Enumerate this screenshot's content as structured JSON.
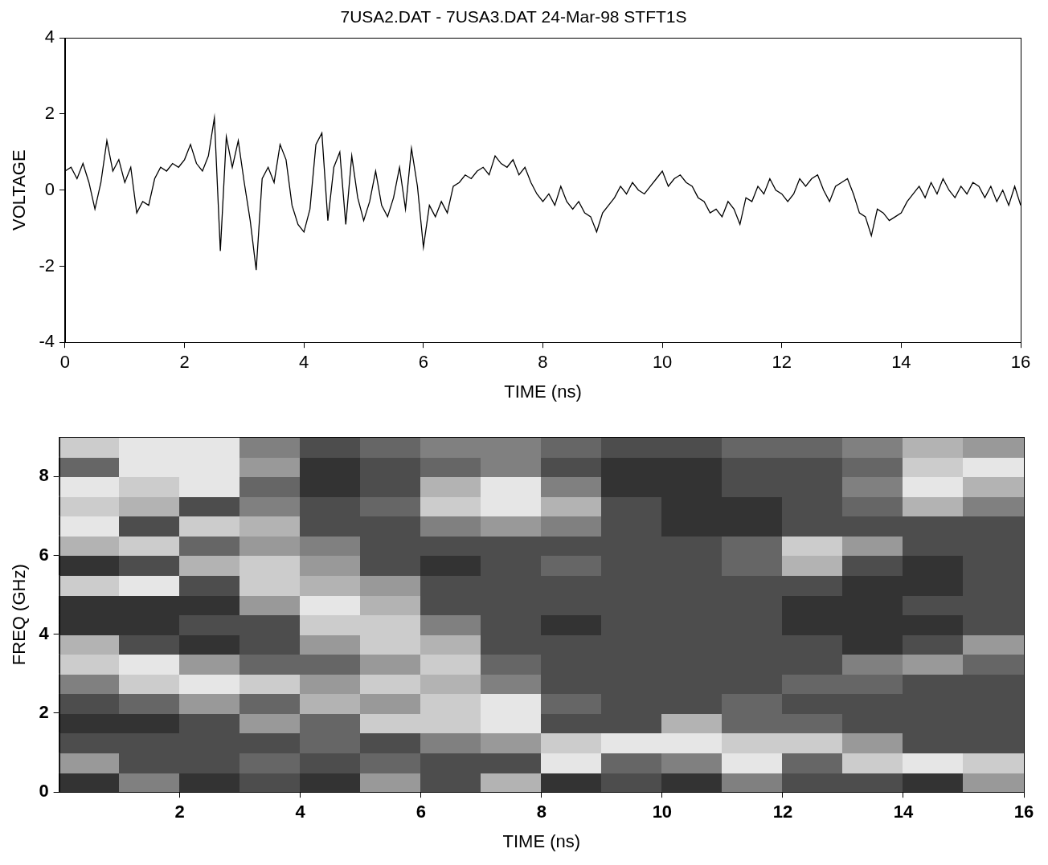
{
  "chart_data": [
    {
      "type": "line",
      "title": "7USA2.DAT - 7USA3.DAT 24-Mar-98 STFT1S",
      "xlabel": "TIME (ns)",
      "ylabel": "VOLTAGE",
      "color": "#000000",
      "grid": false,
      "xlim": [
        0,
        16
      ],
      "ylim": [
        -4,
        4
      ],
      "xticks": [
        0,
        2,
        4,
        6,
        8,
        10,
        12,
        14,
        16
      ],
      "yticks": [
        -4,
        -2,
        0,
        2,
        4
      ],
      "x": [
        0,
        0.1,
        0.2,
        0.3,
        0.4,
        0.5,
        0.6,
        0.7,
        0.8,
        0.9,
        1,
        1.1,
        1.2,
        1.3,
        1.4,
        1.5,
        1.6,
        1.7,
        1.8,
        1.9,
        2,
        2.1,
        2.2,
        2.3,
        2.4,
        2.5,
        2.6,
        2.7,
        2.8,
        2.9,
        3,
        3.1,
        3.2,
        3.3,
        3.4,
        3.5,
        3.6,
        3.7,
        3.8,
        3.9,
        4,
        4.1,
        4.2,
        4.3,
        4.4,
        4.5,
        4.6,
        4.7,
        4.8,
        4.9,
        5,
        5.1,
        5.2,
        5.3,
        5.4,
        5.5,
        5.6,
        5.7,
        5.8,
        5.9,
        6,
        6.1,
        6.2,
        6.3,
        6.4,
        6.5,
        6.6,
        6.7,
        6.8,
        6.9,
        7,
        7.1,
        7.2,
        7.3,
        7.4,
        7.5,
        7.6,
        7.7,
        7.8,
        7.9,
        8,
        8.1,
        8.2,
        8.3,
        8.4,
        8.5,
        8.6,
        8.7,
        8.8,
        8.9,
        9,
        9.1,
        9.2,
        9.3,
        9.4,
        9.5,
        9.6,
        9.7,
        9.8,
        9.9,
        10,
        10.1,
        10.2,
        10.3,
        10.4,
        10.5,
        10.6,
        10.7,
        10.8,
        10.9,
        11,
        11.1,
        11.2,
        11.3,
        11.4,
        11.5,
        11.6,
        11.7,
        11.8,
        11.9,
        12,
        12.1,
        12.2,
        12.3,
        12.4,
        12.5,
        12.6,
        12.7,
        12.8,
        12.9,
        13,
        13.1,
        13.2,
        13.3,
        13.4,
        13.5,
        13.6,
        13.7,
        13.8,
        13.9,
        14,
        14.1,
        14.2,
        14.3,
        14.4,
        14.5,
        14.6,
        14.7,
        14.8,
        14.9,
        15,
        15.1,
        15.2,
        15.3,
        15.4,
        15.5,
        15.6,
        15.7,
        15.8,
        15.9,
        16
      ],
      "values": [
        0.5,
        0.6,
        0.3,
        0.7,
        0.2,
        -0.5,
        0.2,
        1.3,
        0.5,
        0.8,
        0.2,
        0.6,
        -0.6,
        -0.3,
        -0.4,
        0.3,
        0.6,
        0.5,
        0.7,
        0.6,
        0.8,
        1.2,
        0.7,
        0.5,
        0.9,
        1.9,
        -1.6,
        1.4,
        0.6,
        1.3,
        0.2,
        -0.8,
        -2.1,
        0.3,
        0.6,
        0.2,
        1.2,
        0.8,
        -0.4,
        -0.9,
        -1.1,
        -0.5,
        1.2,
        1.5,
        -0.8,
        0.6,
        1.0,
        -0.9,
        0.9,
        -0.2,
        -0.8,
        -0.3,
        0.5,
        -0.4,
        -0.7,
        -0.2,
        0.6,
        -0.5,
        1.1,
        0.1,
        -1.5,
        -0.4,
        -0.7,
        -0.3,
        -0.6,
        0.1,
        0.2,
        0.4,
        0.3,
        0.5,
        0.6,
        0.4,
        0.9,
        0.7,
        0.6,
        0.8,
        0.4,
        0.6,
        0.2,
        -0.1,
        -0.3,
        -0.1,
        -0.4,
        0.1,
        -0.3,
        -0.5,
        -0.3,
        -0.6,
        -0.7,
        -1.1,
        -0.6,
        -0.4,
        -0.2,
        0.1,
        -0.1,
        0.2,
        0,
        -0.1,
        0.1,
        0.3,
        0.5,
        0.1,
        0.3,
        0.4,
        0.2,
        0.1,
        -0.2,
        -0.3,
        -0.6,
        -0.5,
        -0.7,
        -0.3,
        -0.5,
        -0.9,
        -0.2,
        -0.3,
        0.1,
        -0.1,
        0.3,
        0,
        -0.1,
        -0.3,
        -0.1,
        0.3,
        0.1,
        0.3,
        0.4,
        0,
        -0.3,
        0.1,
        0.2,
        0.3,
        -0.1,
        -0.6,
        -0.7,
        -1.2,
        -0.5,
        -0.6,
        -0.8,
        -0.7,
        -0.6,
        -0.3,
        -0.1,
        0.1,
        -0.2,
        0.2,
        -0.1,
        0.3,
        0,
        -0.2,
        0.1,
        -0.1,
        0.2,
        0.1,
        -0.2,
        0.1,
        -0.3,
        0,
        -0.4,
        0.1,
        -0.4
      ]
    },
    {
      "type": "heatmap",
      "xlabel": "TIME (ns)",
      "ylabel": "FREQ (GHz)",
      "grid": false,
      "xlim": [
        0,
        16
      ],
      "ylim": [
        0,
        9
      ],
      "xticks": [
        2,
        4,
        6,
        8,
        10,
        12,
        14,
        16
      ],
      "yticks": [
        0,
        2,
        4,
        6,
        8
      ],
      "x_bins": [
        0,
        1,
        2,
        3,
        4,
        5,
        6,
        7,
        8,
        9,
        10,
        11,
        12,
        13,
        14,
        15,
        16
      ],
      "y_bins": [
        0,
        0.5,
        1,
        1.5,
        2,
        2.5,
        3,
        3.5,
        4,
        4.5,
        5,
        5.5,
        6,
        6.5,
        7,
        7.5,
        8,
        8.5,
        9
      ],
      "cells": [
        [
          0.2,
          0.5,
          0.2,
          0.3,
          0.2,
          0.6,
          0.3,
          0.7,
          0.2,
          0.3,
          0.2,
          0.5,
          0.3,
          0.3,
          0.2,
          0.6
        ],
        [
          0.6,
          0.3,
          0.3,
          0.4,
          0.3,
          0.4,
          0.3,
          0.3,
          0.9,
          0.4,
          0.5,
          0.9,
          0.4,
          0.8,
          0.9,
          0.8
        ],
        [
          0.3,
          0.3,
          0.3,
          0.3,
          0.4,
          0.3,
          0.5,
          0.6,
          0.8,
          0.9,
          0.9,
          0.8,
          0.8,
          0.6,
          0.3,
          0.3
        ],
        [
          0.2,
          0.2,
          0.3,
          0.6,
          0.4,
          0.8,
          0.8,
          0.9,
          0.3,
          0.3,
          0.7,
          0.4,
          0.4,
          0.3,
          0.3,
          0.3
        ],
        [
          0.3,
          0.4,
          0.6,
          0.4,
          0.7,
          0.6,
          0.8,
          0.9,
          0.4,
          0.3,
          0.3,
          0.4,
          0.3,
          0.3,
          0.3,
          0.3
        ],
        [
          0.5,
          0.8,
          0.9,
          0.8,
          0.6,
          0.8,
          0.7,
          0.5,
          0.3,
          0.3,
          0.3,
          0.3,
          0.4,
          0.4,
          0.3,
          0.3
        ],
        [
          0.8,
          0.9,
          0.6,
          0.4,
          0.4,
          0.6,
          0.8,
          0.4,
          0.3,
          0.3,
          0.3,
          0.3,
          0.3,
          0.5,
          0.6,
          0.4
        ],
        [
          0.7,
          0.3,
          0.2,
          0.3,
          0.6,
          0.8,
          0.7,
          0.3,
          0.3,
          0.3,
          0.3,
          0.3,
          0.3,
          0.2,
          0.3,
          0.6
        ],
        [
          0.2,
          0.2,
          0.3,
          0.3,
          0.8,
          0.8,
          0.5,
          0.3,
          0.2,
          0.3,
          0.3,
          0.3,
          0.2,
          0.2,
          0.2,
          0.3
        ],
        [
          0.2,
          0.2,
          0.2,
          0.6,
          0.9,
          0.7,
          0.3,
          0.3,
          0.3,
          0.3,
          0.3,
          0.3,
          0.2,
          0.2,
          0.3,
          0.3
        ],
        [
          0.8,
          0.9,
          0.3,
          0.8,
          0.7,
          0.6,
          0.3,
          0.3,
          0.3,
          0.3,
          0.3,
          0.3,
          0.3,
          0.2,
          0.2,
          0.3
        ],
        [
          0.2,
          0.3,
          0.7,
          0.8,
          0.6,
          0.3,
          0.2,
          0.3,
          0.4,
          0.3,
          0.3,
          0.4,
          0.7,
          0.3,
          0.2,
          0.3
        ],
        [
          0.7,
          0.8,
          0.4,
          0.6,
          0.5,
          0.3,
          0.3,
          0.3,
          0.3,
          0.3,
          0.3,
          0.4,
          0.8,
          0.6,
          0.3,
          0.3
        ],
        [
          0.9,
          0.3,
          0.8,
          0.7,
          0.3,
          0.3,
          0.5,
          0.6,
          0.5,
          0.3,
          0.2,
          0.2,
          0.3,
          0.3,
          0.3,
          0.3
        ],
        [
          0.8,
          0.7,
          0.3,
          0.5,
          0.3,
          0.4,
          0.8,
          0.9,
          0.7,
          0.3,
          0.2,
          0.2,
          0.3,
          0.4,
          0.7,
          0.5
        ],
        [
          0.9,
          0.8,
          0.9,
          0.4,
          0.2,
          0.3,
          0.7,
          0.9,
          0.5,
          0.2,
          0.2,
          0.3,
          0.3,
          0.5,
          0.9,
          0.7
        ],
        [
          0.4,
          0.9,
          0.9,
          0.6,
          0.2,
          0.3,
          0.4,
          0.5,
          0.3,
          0.2,
          0.2,
          0.3,
          0.3,
          0.4,
          0.8,
          0.9
        ],
        [
          0.8,
          0.9,
          0.9,
          0.5,
          0.3,
          0.4,
          0.5,
          0.5,
          0.4,
          0.3,
          0.3,
          0.4,
          0.4,
          0.5,
          0.7,
          0.6
        ]
      ]
    }
  ]
}
